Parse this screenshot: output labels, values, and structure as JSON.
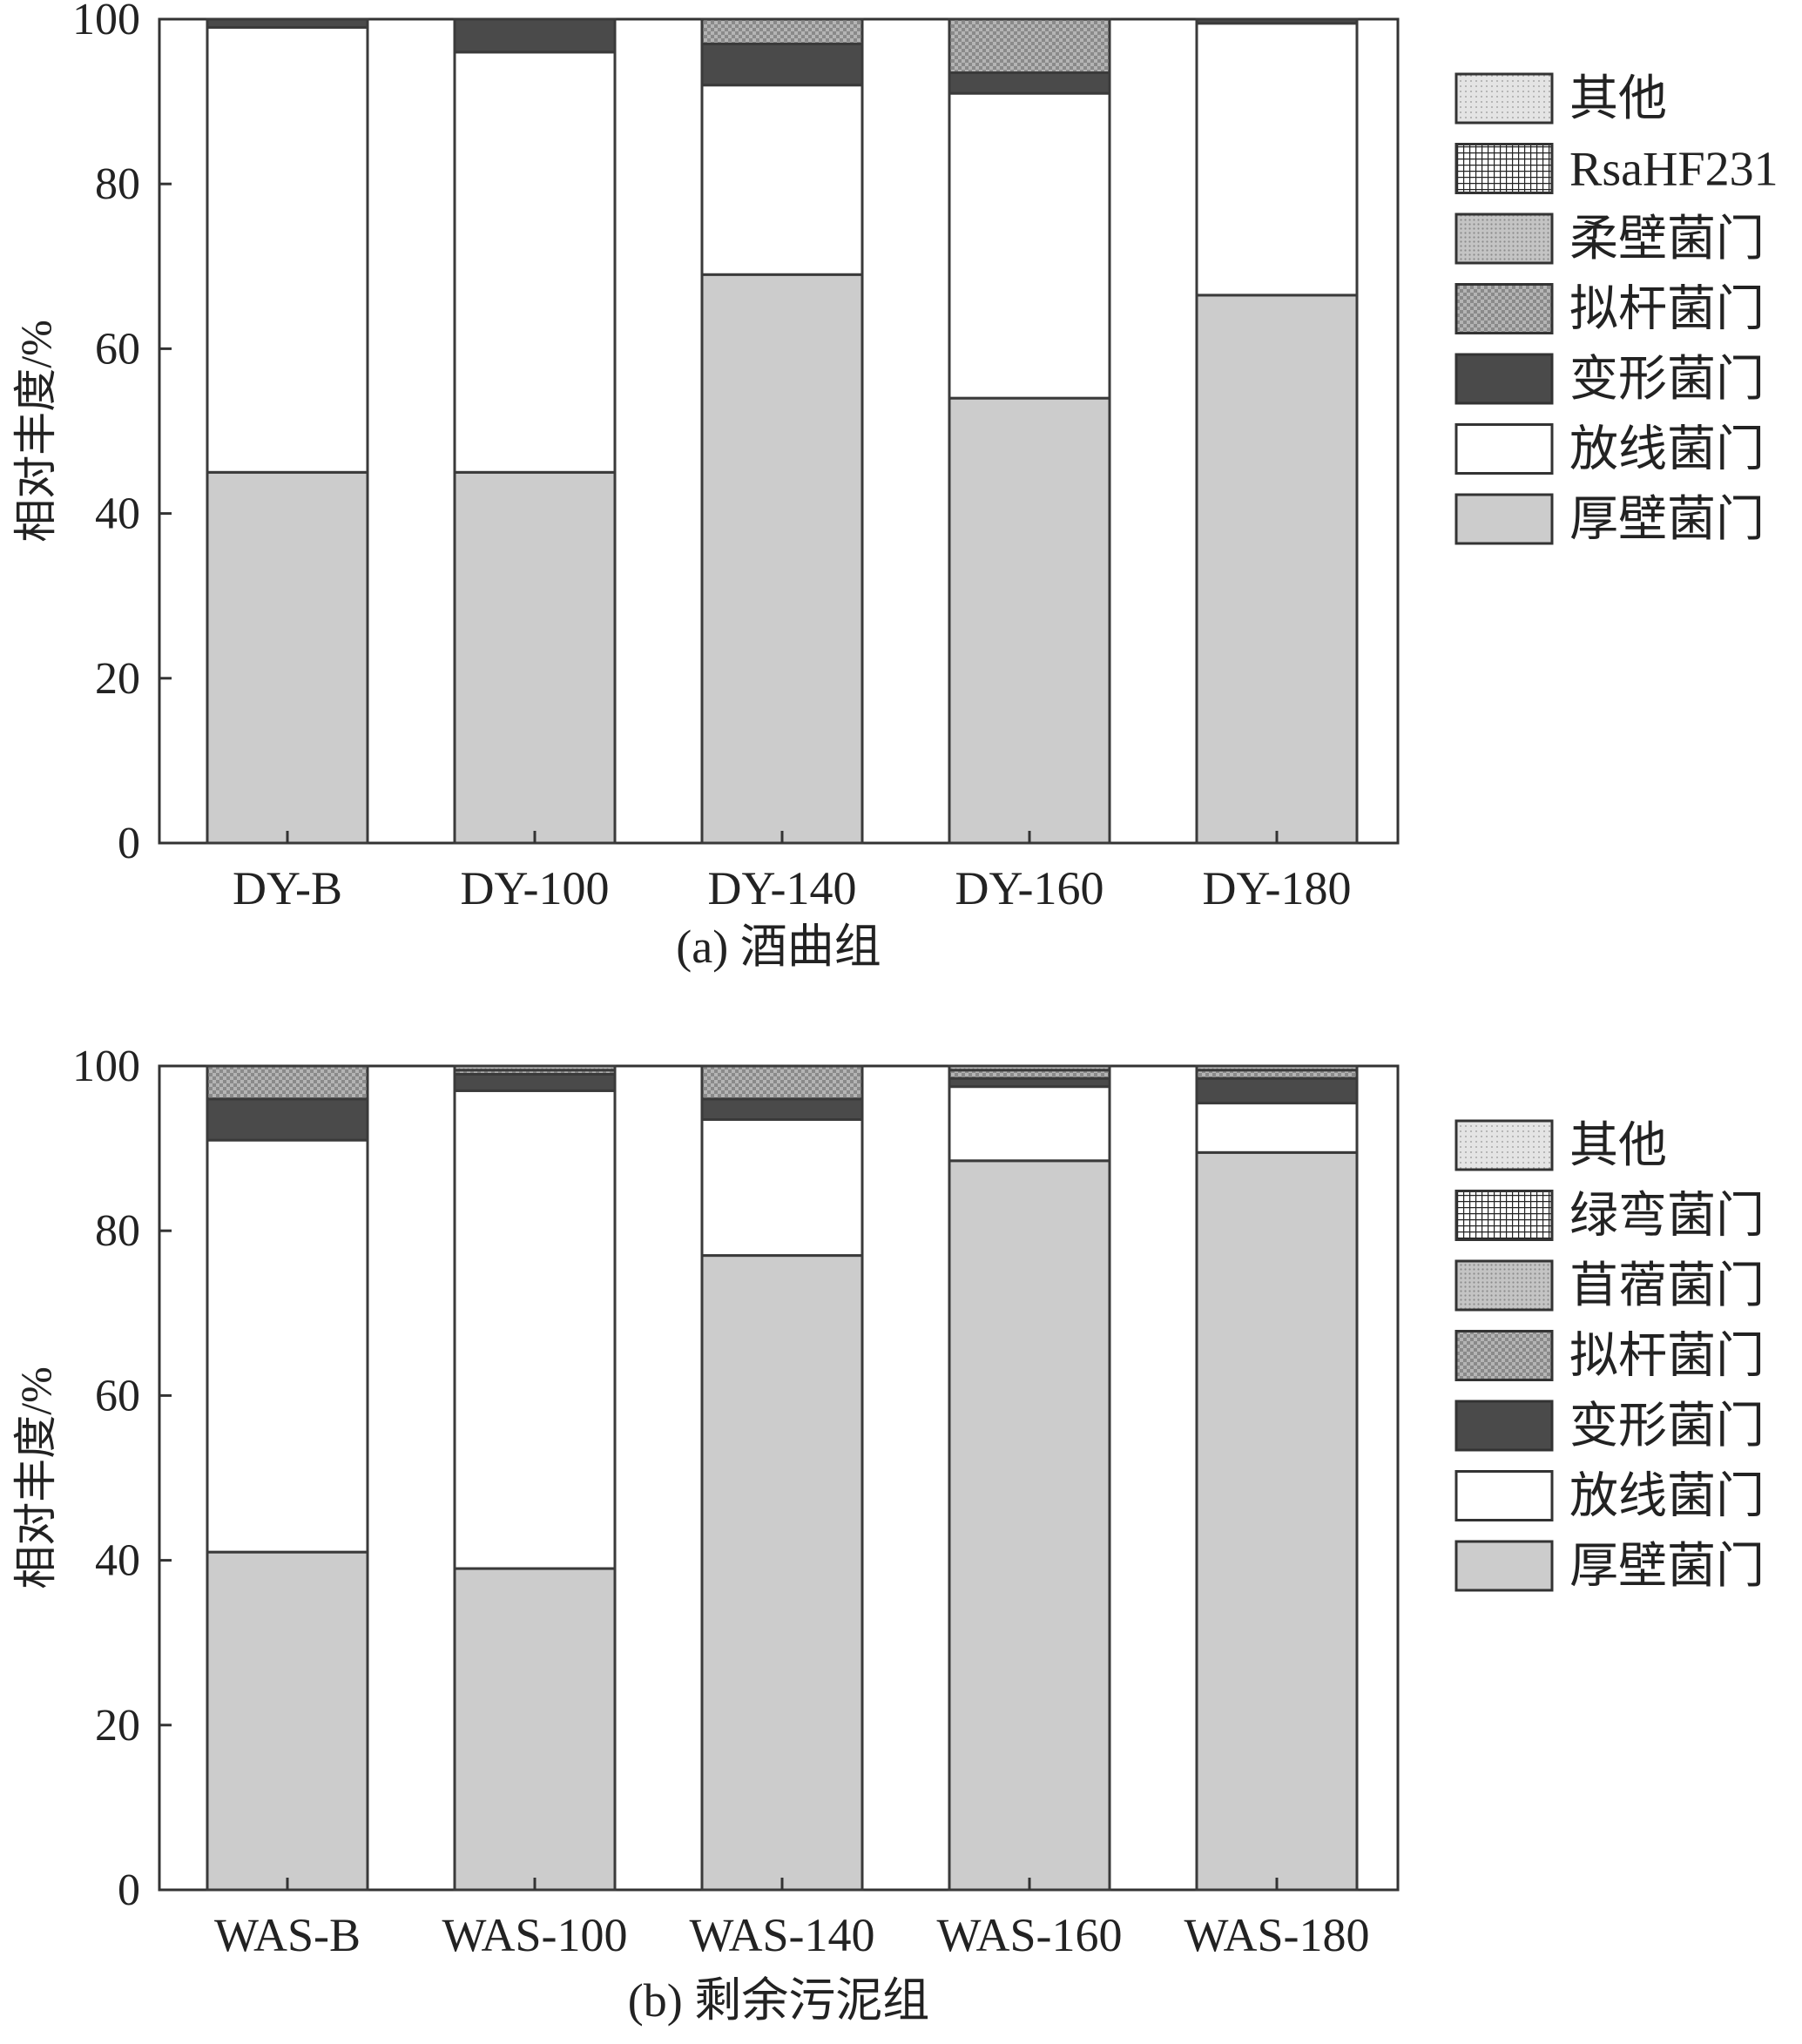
{
  "chart_data": [
    {
      "type": "bar",
      "stacked": true,
      "caption": "(a) 酒曲组",
      "ylabel": "相对丰度/%",
      "ylim": [
        0,
        100
      ],
      "yticks": [
        0,
        20,
        40,
        60,
        80,
        100
      ],
      "categories": [
        "DY-B",
        "DY-100",
        "DY-140",
        "DY-160",
        "DY-180"
      ],
      "legend_position": "right",
      "series": [
        {
          "name": "厚壁菌门",
          "fill": "light-gray",
          "values": [
            45,
            45,
            69,
            54,
            66.5
          ]
        },
        {
          "name": "放线菌门",
          "fill": "white",
          "values": [
            54,
            51,
            23,
            37,
            33
          ]
        },
        {
          "name": "变形菌门",
          "fill": "dark-gray",
          "values": [
            1,
            4,
            5,
            2.5,
            0.5
          ]
        },
        {
          "name": "拟杆菌门",
          "fill": "checker",
          "values": [
            0,
            0,
            3,
            6.5,
            0
          ]
        },
        {
          "name": "柔壁菌门",
          "fill": "fine-dots",
          "values": [
            0,
            0,
            0,
            0,
            0
          ]
        },
        {
          "name": "RsaHF231",
          "fill": "grid",
          "values": [
            0,
            0,
            0,
            0,
            0
          ]
        },
        {
          "name": "其他",
          "fill": "light-dots",
          "values": [
            0,
            0,
            0,
            0,
            0
          ]
        }
      ]
    },
    {
      "type": "bar",
      "stacked": true,
      "caption": "(b) 剩余污泥组",
      "ylabel": "相对丰度/%",
      "ylim": [
        0,
        100
      ],
      "yticks": [
        0,
        20,
        40,
        60,
        80,
        100
      ],
      "categories": [
        "WAS-B",
        "WAS-100",
        "WAS-140",
        "WAS-160",
        "WAS-180"
      ],
      "legend_position": "right",
      "series": [
        {
          "name": "厚壁菌门",
          "fill": "light-gray",
          "values": [
            41,
            39,
            77,
            88.5,
            89.5
          ]
        },
        {
          "name": "放线菌门",
          "fill": "white",
          "values": [
            50,
            58,
            16.5,
            9,
            6
          ]
        },
        {
          "name": "变形菌门",
          "fill": "dark-gray",
          "values": [
            5,
            2,
            2.5,
            1,
            3
          ]
        },
        {
          "name": "拟杆菌门",
          "fill": "checker",
          "values": [
            4,
            0.5,
            4,
            1,
            1
          ]
        },
        {
          "name": "苜蓿菌门",
          "fill": "fine-dots",
          "values": [
            0,
            0.5,
            0,
            0.5,
            0.5
          ]
        },
        {
          "name": "绿弯菌门",
          "fill": "grid",
          "values": [
            0,
            0,
            0,
            0,
            0
          ]
        },
        {
          "name": "其他",
          "fill": "light-dots",
          "values": [
            0,
            0,
            0,
            0,
            0
          ]
        }
      ]
    }
  ]
}
